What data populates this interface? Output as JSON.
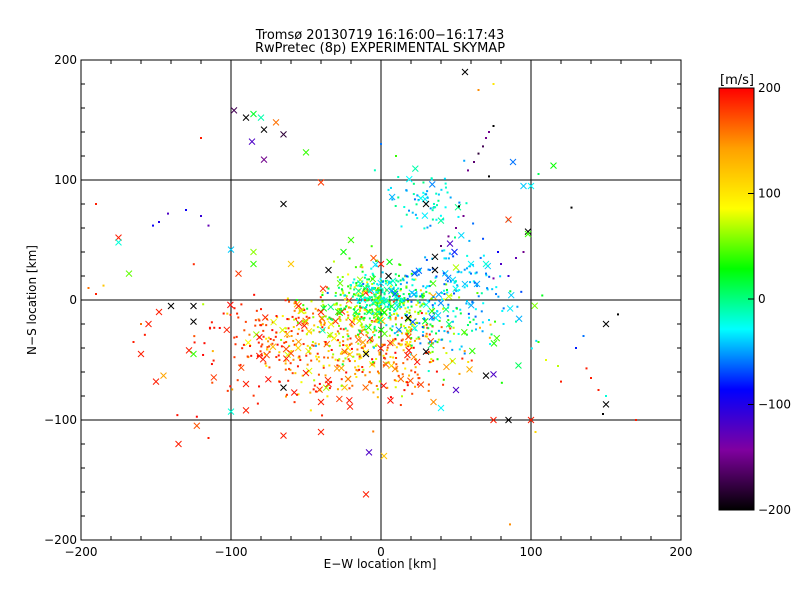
{
  "chart_data": {
    "type": "scatter",
    "title": "Tromsø 20130719 16:16:00−16:17:43",
    "subtitle": "RwPretec (8p) EXPERIMENTAL SKYMAP",
    "xlabel": "E−W location [km]",
    "ylabel": "N−S location [km]",
    "xlim": [
      -200,
      200
    ],
    "ylim": [
      -200,
      200
    ],
    "xticks": [
      -200,
      -100,
      0,
      100,
      200
    ],
    "yticks": [
      -200,
      -100,
      0,
      100,
      200
    ],
    "xtick_labels": [
      "−200",
      "−100",
      "0",
      "100",
      "200"
    ],
    "ytick_labels": [
      "−200",
      "−100",
      "0",
      "100",
      "200"
    ],
    "grid": true,
    "color_scale": {
      "label": "[m/s]",
      "range": [
        -200,
        200
      ],
      "ticks": [
        200,
        100,
        0,
        -100,
        -200
      ],
      "tick_labels": [
        "200",
        "100",
        "0",
        "−100",
        "−200"
      ],
      "colors": [
        "#000000",
        "#8000a0",
        "#0000ff",
        "#00ffff",
        "#00ff00",
        "#ffff00",
        "#ffa000",
        "#ff0000"
      ]
    },
    "series": [
      {
        "marker": "x",
        "points": [
          {
            "x": 56,
            "y": 190,
            "v": -200
          },
          {
            "x": -98,
            "y": 158,
            "v": -170
          },
          {
            "x": -90,
            "y": 152,
            "v": -200
          },
          {
            "x": -85,
            "y": 155,
            "v": 20
          },
          {
            "x": -80,
            "y": 152,
            "v": -10
          },
          {
            "x": -78,
            "y": 142,
            "v": -200
          },
          {
            "x": -70,
            "y": 148,
            "v": 160
          },
          {
            "x": -65,
            "y": 138,
            "v": -180
          },
          {
            "x": -86,
            "y": 132,
            "v": -120
          },
          {
            "x": -78,
            "y": 117,
            "v": -150
          },
          {
            "x": -50,
            "y": 123,
            "v": 40
          },
          {
            "x": -65,
            "y": 80,
            "v": -200
          },
          {
            "x": -40,
            "y": 98,
            "v": 180
          },
          {
            "x": 95,
            "y": 95,
            "v": -40
          },
          {
            "x": 100,
            "y": 95,
            "v": -30
          },
          {
            "x": 115,
            "y": 112,
            "v": 30
          },
          {
            "x": 88,
            "y": 115,
            "v": -60
          },
          {
            "x": 30,
            "y": 80,
            "v": -200
          },
          {
            "x": 98,
            "y": 57,
            "v": -200
          },
          {
            "x": 98,
            "y": 55,
            "v": 40
          },
          {
            "x": 85,
            "y": 67,
            "v": 180
          },
          {
            "x": 46,
            "y": 47,
            "v": -120
          },
          {
            "x": 36,
            "y": 36,
            "v": -200
          },
          {
            "x": 36,
            "y": 25,
            "v": -200
          },
          {
            "x": 49,
            "y": 40,
            "v": -80
          },
          {
            "x": 60,
            "y": 30,
            "v": -30
          },
          {
            "x": 70,
            "y": 30,
            "v": -20
          },
          {
            "x": -175,
            "y": 52,
            "v": 190
          },
          {
            "x": -175,
            "y": 48,
            "v": -20
          },
          {
            "x": -168,
            "y": 22,
            "v": 50
          },
          {
            "x": -100,
            "y": 42,
            "v": -40
          },
          {
            "x": -95,
            "y": 22,
            "v": 180
          },
          {
            "x": -85,
            "y": 40,
            "v": 60
          },
          {
            "x": -85,
            "y": 30,
            "v": 40
          },
          {
            "x": -60,
            "y": 30,
            "v": 120
          },
          {
            "x": -25,
            "y": 40,
            "v": 30
          },
          {
            "x": -20,
            "y": 50,
            "v": 40
          },
          {
            "x": -5,
            "y": 35,
            "v": 170
          },
          {
            "x": 0,
            "y": 30,
            "v": 190
          },
          {
            "x": -35,
            "y": 25,
            "v": -200
          },
          {
            "x": 5,
            "y": 20,
            "v": -200
          },
          {
            "x": -140,
            "y": -5,
            "v": -200
          },
          {
            "x": -125,
            "y": -5,
            "v": -200
          },
          {
            "x": -125,
            "y": -18,
            "v": -200
          },
          {
            "x": -148,
            "y": -10,
            "v": 190
          },
          {
            "x": -155,
            "y": -20,
            "v": 190
          },
          {
            "x": -160,
            "y": -45,
            "v": 190
          },
          {
            "x": -150,
            "y": -68,
            "v": 190
          },
          {
            "x": -145,
            "y": -63,
            "v": 140
          },
          {
            "x": -128,
            "y": -42,
            "v": 190
          },
          {
            "x": -125,
            "y": -45,
            "v": 40
          },
          {
            "x": -100,
            "y": -93,
            "v": -20
          },
          {
            "x": -90,
            "y": -92,
            "v": 190
          },
          {
            "x": -65,
            "y": -113,
            "v": 190
          },
          {
            "x": -40,
            "y": -110,
            "v": 190
          },
          {
            "x": -135,
            "y": -120,
            "v": 190
          },
          {
            "x": -8,
            "y": -127,
            "v": -120
          },
          {
            "x": 2,
            "y": -130,
            "v": 120
          },
          {
            "x": -10,
            "y": -162,
            "v": 190
          },
          {
            "x": 85,
            "y": -100,
            "v": -200
          },
          {
            "x": 75,
            "y": -100,
            "v": 190
          },
          {
            "x": 100,
            "y": -100,
            "v": 190
          },
          {
            "x": 150,
            "y": -20,
            "v": -200
          },
          {
            "x": 150,
            "y": -87,
            "v": -200
          },
          {
            "x": 70,
            "y": -63,
            "v": -200
          },
          {
            "x": 75,
            "y": -62,
            "v": -120
          },
          {
            "x": 50,
            "y": -75,
            "v": -120
          },
          {
            "x": 35,
            "y": -85,
            "v": 150
          },
          {
            "x": 40,
            "y": -90,
            "v": -30
          },
          {
            "x": -65,
            "y": -73,
            "v": -200
          },
          {
            "x": -90,
            "y": -70,
            "v": 190
          },
          {
            "x": 30,
            "y": -43,
            "v": -200
          },
          {
            "x": -10,
            "y": -45,
            "v": -200
          },
          {
            "x": 18,
            "y": -15,
            "v": -200
          },
          {
            "x": -55,
            "y": -5,
            "v": 190
          },
          {
            "x": -40,
            "y": -10,
            "v": 190
          },
          {
            "x": -35,
            "y": -70,
            "v": 190
          },
          {
            "x": -40,
            "y": -85,
            "v": 190
          }
        ]
      },
      {
        "marker": "dot",
        "points": [
          {
            "x": 72,
            "y": 140,
            "v": -150
          },
          {
            "x": 70,
            "y": 135,
            "v": -150
          },
          {
            "x": 68,
            "y": 128,
            "v": -170
          },
          {
            "x": 65,
            "y": 122,
            "v": -180
          },
          {
            "x": 62,
            "y": 115,
            "v": -160
          },
          {
            "x": 58,
            "y": 108,
            "v": -150
          },
          {
            "x": 75,
            "y": 145,
            "v": -200
          },
          {
            "x": 52,
            "y": 78,
            "v": -200
          },
          {
            "x": 55,
            "y": 70,
            "v": -150
          },
          {
            "x": 50,
            "y": 60,
            "v": -150
          },
          {
            "x": 45,
            "y": 53,
            "v": -150
          },
          {
            "x": 40,
            "y": 45,
            "v": -160
          },
          {
            "x": 72,
            "y": 103,
            "v": -200
          },
          {
            "x": 65,
            "y": 175,
            "v": 150
          },
          {
            "x": 75,
            "y": 180,
            "v": 100
          },
          {
            "x": -120,
            "y": 135,
            "v": 190
          },
          {
            "x": -190,
            "y": 80,
            "v": 190
          },
          {
            "x": -148,
            "y": 65,
            "v": -100
          },
          {
            "x": -142,
            "y": 72,
            "v": -120
          },
          {
            "x": -130,
            "y": 75,
            "v": -90
          },
          {
            "x": -120,
            "y": 70,
            "v": -110
          },
          {
            "x": -115,
            "y": 62,
            "v": -130
          },
          {
            "x": -152,
            "y": 62,
            "v": -90
          },
          {
            "x": 0,
            "y": 130,
            "v": -60
          },
          {
            "x": 10,
            "y": 120,
            "v": 40
          },
          {
            "x": 105,
            "y": 105,
            "v": 10
          },
          {
            "x": 127,
            "y": 77,
            "v": -200
          },
          {
            "x": 158,
            "y": -12,
            "v": -200
          },
          {
            "x": 135,
            "y": -30,
            "v": -60
          },
          {
            "x": 130,
            "y": -40,
            "v": -80
          },
          {
            "x": 137,
            "y": -57,
            "v": 190
          },
          {
            "x": 140,
            "y": -65,
            "v": 190
          },
          {
            "x": 145,
            "y": -75,
            "v": 190
          },
          {
            "x": 150,
            "y": -80,
            "v": -20
          },
          {
            "x": 148,
            "y": -95,
            "v": -200
          },
          {
            "x": 170,
            "y": -100,
            "v": 190
          },
          {
            "x": 103,
            "y": -110,
            "v": 110
          },
          {
            "x": 90,
            "y": -18,
            "v": -10
          },
          {
            "x": 105,
            "y": -35,
            "v": 40
          },
          {
            "x": 110,
            "y": -50,
            "v": 80
          },
          {
            "x": 118,
            "y": -55,
            "v": 70
          },
          {
            "x": 120,
            "y": -68,
            "v": 190
          },
          {
            "x": 86,
            "y": -187,
            "v": 150
          },
          {
            "x": 85,
            "y": 20,
            "v": -110
          },
          {
            "x": 90,
            "y": 35,
            "v": -130
          },
          {
            "x": 95,
            "y": 40,
            "v": -150
          },
          {
            "x": 80,
            "y": 30,
            "v": -120
          },
          {
            "x": 75,
            "y": 18,
            "v": -140
          },
          {
            "x": 78,
            "y": 40,
            "v": -90
          },
          {
            "x": 70,
            "y": 22,
            "v": -60
          },
          {
            "x": 60,
            "y": 22,
            "v": -60
          },
          {
            "x": -190,
            "y": 5,
            "v": 190
          },
          {
            "x": -185,
            "y": 12,
            "v": 120
          },
          {
            "x": -195,
            "y": 10,
            "v": 160
          },
          {
            "x": -165,
            "y": -35,
            "v": 190
          },
          {
            "x": -115,
            "y": -115,
            "v": 190
          },
          {
            "x": -160,
            "y": -20,
            "v": 160
          }
        ]
      }
    ],
    "clusters": [
      {
        "cx": -20,
        "cy": -35,
        "sx": 35,
        "sy": 22,
        "n": 420,
        "vmin": 60,
        "vmax": 200
      },
      {
        "cx": -75,
        "cy": -40,
        "sx": 30,
        "sy": 25,
        "n": 130,
        "vmin": 170,
        "vmax": 200
      },
      {
        "cx": -5,
        "cy": -5,
        "sx": 22,
        "sy": 15,
        "n": 260,
        "vmin": 0,
        "vmax": 90
      },
      {
        "cx": 0,
        "cy": 5,
        "sx": 12,
        "sy": 10,
        "n": 140,
        "vmin": -40,
        "vmax": 20
      },
      {
        "cx": 45,
        "cy": 10,
        "sx": 22,
        "sy": 18,
        "n": 160,
        "vmin": -70,
        "vmax": -20
      },
      {
        "cx": 40,
        "cy": -25,
        "sx": 30,
        "sy": 18,
        "n": 90,
        "vmin": -60,
        "vmax": 60
      },
      {
        "cx": 30,
        "cy": 85,
        "sx": 15,
        "sy": 12,
        "n": 70,
        "vmin": -60,
        "vmax": 0
      },
      {
        "cx": 10,
        "cy": -60,
        "sx": 20,
        "sy": 20,
        "n": 60,
        "vmin": 150,
        "vmax": 200
      }
    ]
  }
}
